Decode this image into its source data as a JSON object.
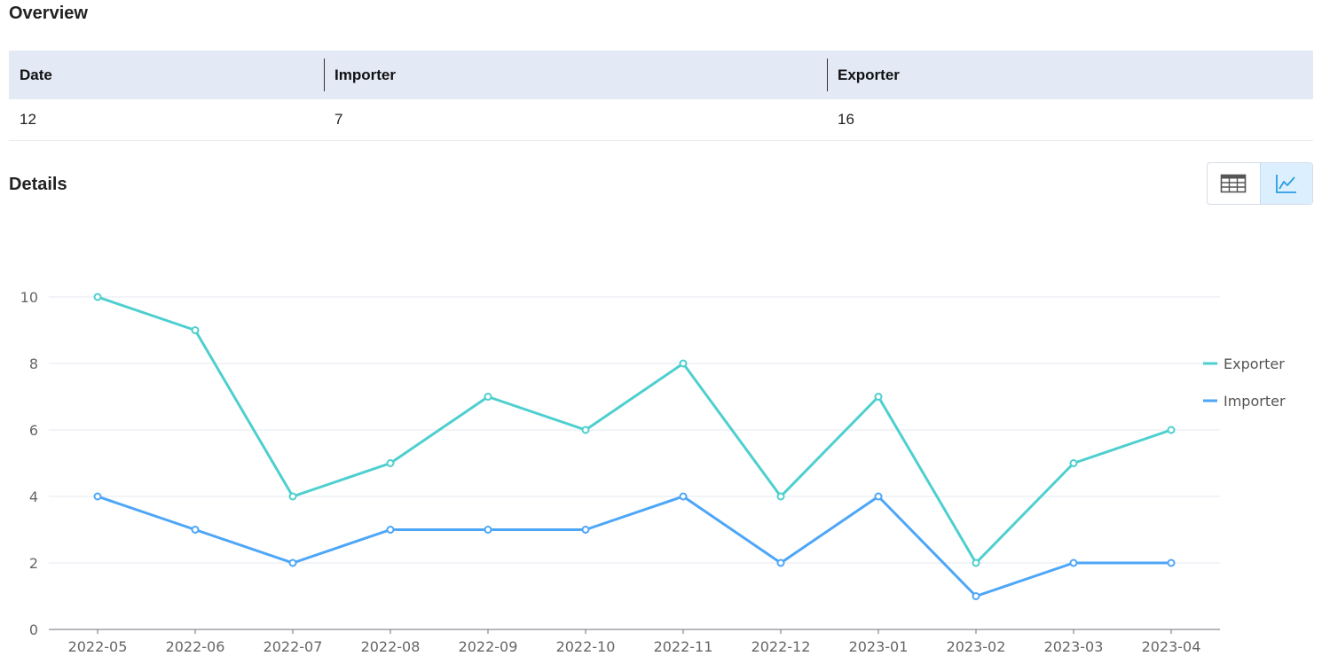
{
  "overview": {
    "title": "Overview",
    "headers": [
      "Date",
      "Importer",
      "Exporter"
    ],
    "values": [
      "12",
      "7",
      "16"
    ]
  },
  "details": {
    "title": "Details",
    "view_toggle": {
      "table_icon": "table-icon",
      "chart_icon": "line-chart-icon",
      "active": "chart"
    }
  },
  "chart_data": {
    "type": "line",
    "x": [
      "2022-05",
      "2022-06",
      "2022-07",
      "2022-08",
      "2022-09",
      "2022-10",
      "2022-11",
      "2022-12",
      "2023-01",
      "2023-02",
      "2023-03",
      "2023-04"
    ],
    "ylim": [
      0,
      10
    ],
    "yticks": [
      0,
      2,
      4,
      6,
      8,
      10
    ],
    "grid": true,
    "legend": "right",
    "series": [
      {
        "name": "Exporter",
        "color": "#4ecfcf",
        "values": [
          10,
          9,
          4,
          5,
          7,
          6,
          8,
          4,
          7,
          2,
          5,
          6
        ]
      },
      {
        "name": "Importer",
        "color": "#4da6f7",
        "values": [
          4,
          3,
          2,
          3,
          3,
          3,
          4,
          2,
          4,
          1,
          2,
          2
        ]
      }
    ]
  }
}
